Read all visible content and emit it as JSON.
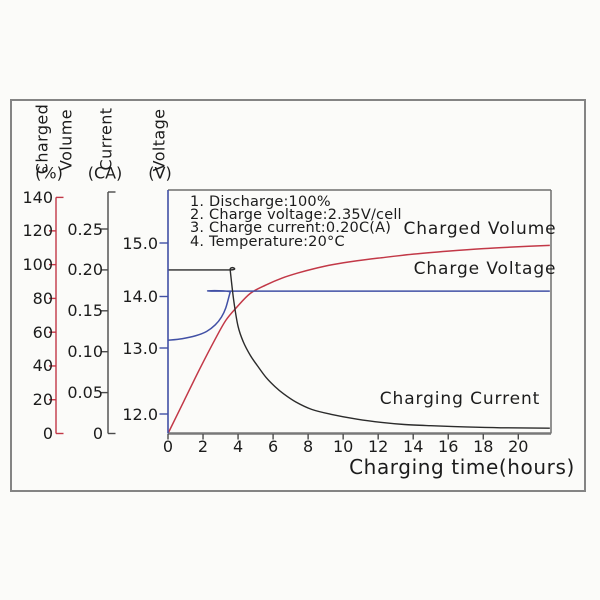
{
  "axes": {
    "charged_volume": {
      "title_line1": "Charged",
      "title_line2": "Volume",
      "unit": "(%)",
      "color": "#c23847",
      "tick_labels": [
        "140",
        "120",
        "100",
        "80",
        "60",
        "40",
        "20",
        "0"
      ],
      "tick_values": [
        140,
        120,
        100,
        80,
        60,
        40,
        20,
        0
      ]
    },
    "current": {
      "title": "Current",
      "unit": "(CA)",
      "color": "#4a4a4a",
      "tick_labels": [
        "0.25",
        "0.20",
        "0.15",
        "0.10",
        "0.05",
        "0"
      ],
      "tick_values": [
        0.25,
        0.2,
        0.15,
        0.1,
        0.05,
        0
      ]
    },
    "voltage": {
      "title": "Voltage",
      "unit": "(V)",
      "color": "#4150a5",
      "tick_labels": [
        "15.0",
        "14.0",
        "13.0",
        "12.0"
      ],
      "tick_values": [
        15,
        14,
        13,
        12
      ]
    },
    "time": {
      "label": "Charging time(hours)",
      "color": "#4a4a4a",
      "tick_labels": [
        "0",
        "2",
        "4",
        "6",
        "8",
        "10",
        "12",
        "14",
        "16",
        "18",
        "20"
      ],
      "tick_values": [
        0,
        2,
        4,
        6,
        8,
        10,
        12,
        14,
        16,
        18,
        20
      ]
    }
  },
  "chart_data": {
    "type": "line",
    "title": "",
    "xlabel": "Charging time(hours)",
    "x_range": [
      0,
      21.8
    ],
    "grid": false,
    "annotations": [
      "1. Discharge:100%",
      "2. Charge voltage:2.35V/cell",
      "3. Charge current:0.20C(A)",
      "4. Temperature:20°C"
    ],
    "series": [
      {
        "name": "Charged Volume",
        "axis": "charged_volume",
        "unit": "%",
        "color": "#c23847",
        "points": [
          [
            0,
            0
          ],
          [
            0.9,
            19
          ],
          [
            1.8,
            38
          ],
          [
            2.7,
            56
          ],
          [
            3.3,
            67
          ],
          [
            3.9,
            74.5
          ],
          [
            4.7,
            83
          ],
          [
            5.6,
            88
          ],
          [
            6.5,
            92
          ],
          [
            7.4,
            95
          ],
          [
            8.3,
            97.5
          ],
          [
            9.4,
            100
          ],
          [
            10.8,
            102.3
          ],
          [
            12.2,
            104.1
          ],
          [
            14,
            106.2
          ],
          [
            16,
            108
          ],
          [
            18,
            109.5
          ],
          [
            20,
            110.6
          ],
          [
            21.8,
            111.4
          ]
        ]
      },
      {
        "name": "Charge Voltage",
        "axis": "voltage",
        "unit": "V",
        "color": "#4150a5",
        "points": [
          [
            0,
            13.15
          ],
          [
            0.8,
            13.18
          ],
          [
            1.6,
            13.24
          ],
          [
            2.2,
            13.32
          ],
          [
            2.7,
            13.45
          ],
          [
            3.05,
            13.6
          ],
          [
            3.3,
            13.78
          ],
          [
            3.55,
            14.08
          ],
          [
            3.62,
            14.1
          ],
          [
            21.8,
            14.1
          ]
        ]
      },
      {
        "name": "Charging Current",
        "axis": "current",
        "unit": "CA",
        "color": "#2b2b2b",
        "points": [
          [
            0,
            0.2
          ],
          [
            3.55,
            0.2
          ],
          [
            3.55,
            0.2
          ],
          [
            3.75,
            0.163
          ],
          [
            4,
            0.131
          ],
          [
            4.3,
            0.112
          ],
          [
            4.7,
            0.0955
          ],
          [
            5.1,
            0.083
          ],
          [
            5.6,
            0.0685
          ],
          [
            6.1,
            0.0575
          ],
          [
            6.6,
            0.0485
          ],
          [
            7.3,
            0.0385
          ],
          [
            8.2,
            0.0295
          ],
          [
            9.3,
            0.0235
          ],
          [
            10.8,
            0.0175
          ],
          [
            12.2,
            0.0135
          ],
          [
            13.5,
            0.011
          ],
          [
            15,
            0.0095
          ],
          [
            17,
            0.008
          ],
          [
            19,
            0.007
          ],
          [
            21.8,
            0.0065
          ]
        ]
      }
    ]
  }
}
